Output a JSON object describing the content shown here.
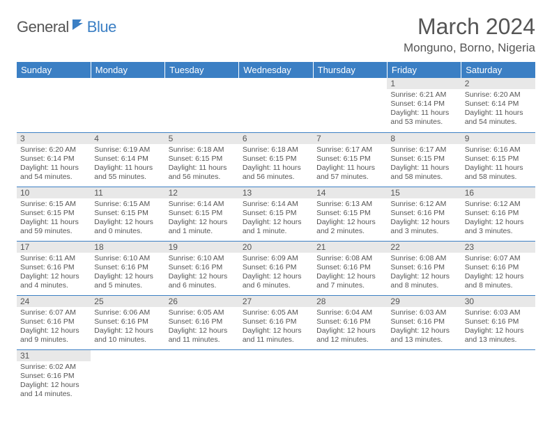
{
  "logo": {
    "general": "General",
    "blue": "Blue"
  },
  "title": "March 2024",
  "location": "Monguno, Borno, Nigeria",
  "colors": {
    "header_bg": "#3b7fc4",
    "header_text": "#ffffff",
    "daynum_bg": "#e8e8e8",
    "text": "#555555",
    "row_border": "#3b7fc4",
    "background": "#ffffff"
  },
  "weekdays": [
    "Sunday",
    "Monday",
    "Tuesday",
    "Wednesday",
    "Thursday",
    "Friday",
    "Saturday"
  ],
  "weeks": [
    [
      null,
      null,
      null,
      null,
      null,
      {
        "n": "1",
        "sr": "6:21 AM",
        "ss": "6:14 PM",
        "dl": "11 hours and 53 minutes."
      },
      {
        "n": "2",
        "sr": "6:20 AM",
        "ss": "6:14 PM",
        "dl": "11 hours and 54 minutes."
      }
    ],
    [
      {
        "n": "3",
        "sr": "6:20 AM",
        "ss": "6:14 PM",
        "dl": "11 hours and 54 minutes."
      },
      {
        "n": "4",
        "sr": "6:19 AM",
        "ss": "6:14 PM",
        "dl": "11 hours and 55 minutes."
      },
      {
        "n": "5",
        "sr": "6:18 AM",
        "ss": "6:15 PM",
        "dl": "11 hours and 56 minutes."
      },
      {
        "n": "6",
        "sr": "6:18 AM",
        "ss": "6:15 PM",
        "dl": "11 hours and 56 minutes."
      },
      {
        "n": "7",
        "sr": "6:17 AM",
        "ss": "6:15 PM",
        "dl": "11 hours and 57 minutes."
      },
      {
        "n": "8",
        "sr": "6:17 AM",
        "ss": "6:15 PM",
        "dl": "11 hours and 58 minutes."
      },
      {
        "n": "9",
        "sr": "6:16 AM",
        "ss": "6:15 PM",
        "dl": "11 hours and 58 minutes."
      }
    ],
    [
      {
        "n": "10",
        "sr": "6:15 AM",
        "ss": "6:15 PM",
        "dl": "11 hours and 59 minutes."
      },
      {
        "n": "11",
        "sr": "6:15 AM",
        "ss": "6:15 PM",
        "dl": "12 hours and 0 minutes."
      },
      {
        "n": "12",
        "sr": "6:14 AM",
        "ss": "6:15 PM",
        "dl": "12 hours and 1 minute."
      },
      {
        "n": "13",
        "sr": "6:14 AM",
        "ss": "6:15 PM",
        "dl": "12 hours and 1 minute."
      },
      {
        "n": "14",
        "sr": "6:13 AM",
        "ss": "6:15 PM",
        "dl": "12 hours and 2 minutes."
      },
      {
        "n": "15",
        "sr": "6:12 AM",
        "ss": "6:16 PM",
        "dl": "12 hours and 3 minutes."
      },
      {
        "n": "16",
        "sr": "6:12 AM",
        "ss": "6:16 PM",
        "dl": "12 hours and 3 minutes."
      }
    ],
    [
      {
        "n": "17",
        "sr": "6:11 AM",
        "ss": "6:16 PM",
        "dl": "12 hours and 4 minutes."
      },
      {
        "n": "18",
        "sr": "6:10 AM",
        "ss": "6:16 PM",
        "dl": "12 hours and 5 minutes."
      },
      {
        "n": "19",
        "sr": "6:10 AM",
        "ss": "6:16 PM",
        "dl": "12 hours and 6 minutes."
      },
      {
        "n": "20",
        "sr": "6:09 AM",
        "ss": "6:16 PM",
        "dl": "12 hours and 6 minutes."
      },
      {
        "n": "21",
        "sr": "6:08 AM",
        "ss": "6:16 PM",
        "dl": "12 hours and 7 minutes."
      },
      {
        "n": "22",
        "sr": "6:08 AM",
        "ss": "6:16 PM",
        "dl": "12 hours and 8 minutes."
      },
      {
        "n": "23",
        "sr": "6:07 AM",
        "ss": "6:16 PM",
        "dl": "12 hours and 8 minutes."
      }
    ],
    [
      {
        "n": "24",
        "sr": "6:07 AM",
        "ss": "6:16 PM",
        "dl": "12 hours and 9 minutes."
      },
      {
        "n": "25",
        "sr": "6:06 AM",
        "ss": "6:16 PM",
        "dl": "12 hours and 10 minutes."
      },
      {
        "n": "26",
        "sr": "6:05 AM",
        "ss": "6:16 PM",
        "dl": "12 hours and 11 minutes."
      },
      {
        "n": "27",
        "sr": "6:05 AM",
        "ss": "6:16 PM",
        "dl": "12 hours and 11 minutes."
      },
      {
        "n": "28",
        "sr": "6:04 AM",
        "ss": "6:16 PM",
        "dl": "12 hours and 12 minutes."
      },
      {
        "n": "29",
        "sr": "6:03 AM",
        "ss": "6:16 PM",
        "dl": "12 hours and 13 minutes."
      },
      {
        "n": "30",
        "sr": "6:03 AM",
        "ss": "6:16 PM",
        "dl": "12 hours and 13 minutes."
      }
    ],
    [
      {
        "n": "31",
        "sr": "6:02 AM",
        "ss": "6:16 PM",
        "dl": "12 hours and 14 minutes."
      },
      null,
      null,
      null,
      null,
      null,
      null
    ]
  ],
  "labels": {
    "sunrise": "Sunrise:",
    "sunset": "Sunset:",
    "daylight": "Daylight:"
  }
}
